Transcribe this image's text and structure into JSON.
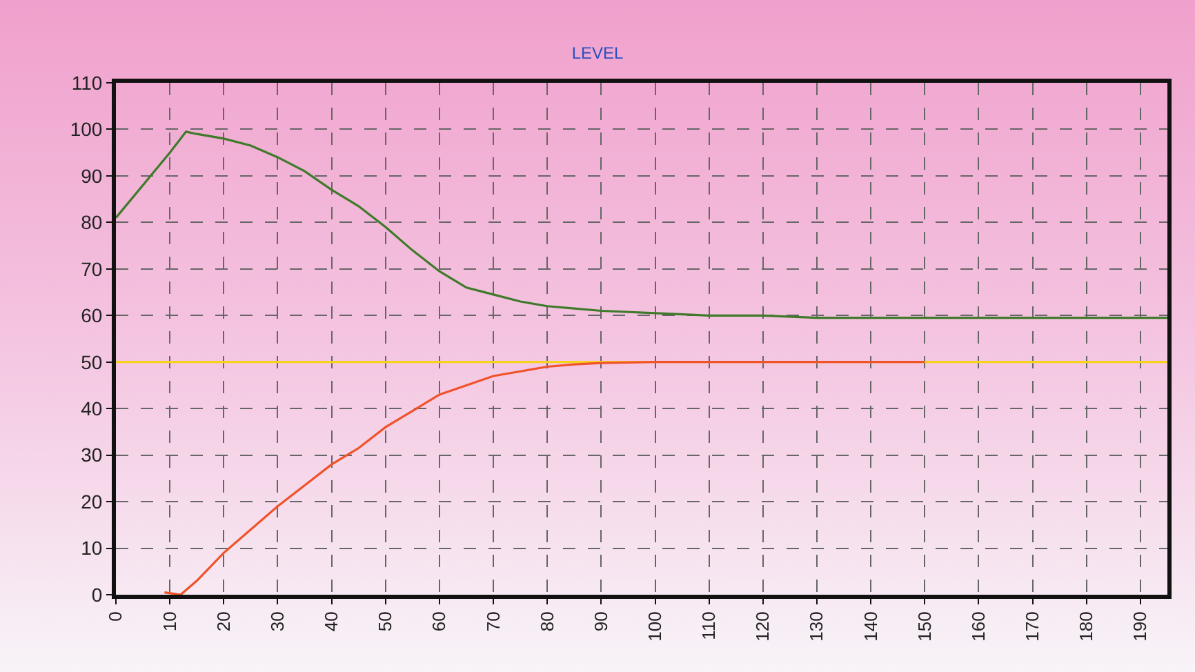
{
  "chart_data": {
    "type": "line",
    "title": "LEVEL",
    "xlim": [
      0,
      195
    ],
    "ylim": [
      0,
      110
    ],
    "xticks": [
      0,
      10,
      20,
      30,
      40,
      50,
      60,
      70,
      80,
      90,
      100,
      110,
      120,
      130,
      140,
      150,
      160,
      170,
      180,
      190
    ],
    "yticks": [
      0,
      10,
      20,
      30,
      40,
      50,
      60,
      70,
      80,
      90,
      100,
      110
    ],
    "grid": true,
    "line_style": "solid",
    "marker": "none",
    "series": [
      {
        "color": "#3f7a2a",
        "x": [
          0,
          5,
          10,
          13,
          15,
          20,
          25,
          30,
          35,
          40,
          45,
          50,
          55,
          60,
          65,
          70,
          75,
          80,
          85,
          90,
          100,
          110,
          120,
          130,
          150,
          170,
          190,
          195
        ],
        "values": [
          81,
          88,
          95,
          99.5,
          99,
          98,
          96.5,
          94,
          91,
          87,
          83.5,
          79,
          74,
          69.5,
          66,
          64.5,
          63,
          62,
          61.5,
          61,
          60.5,
          60,
          60,
          59.5,
          59.5,
          59.5,
          59.5,
          59.5
        ]
      },
      {
        "color": "#f5d21c",
        "x": [
          0,
          195
        ],
        "values": [
          50,
          50
        ]
      },
      {
        "color": "#f0522a",
        "x": [
          9,
          12,
          15,
          20,
          25,
          30,
          35,
          40,
          45,
          50,
          55,
          60,
          65,
          70,
          75,
          80,
          85,
          90,
          100,
          120,
          150
        ],
        "values": [
          0.5,
          0,
          3,
          9,
          14,
          19,
          23.5,
          28,
          31.5,
          36,
          39.5,
          43,
          45,
          47,
          48,
          49,
          49.5,
          49.8,
          50,
          50,
          50
        ]
      }
    ]
  }
}
